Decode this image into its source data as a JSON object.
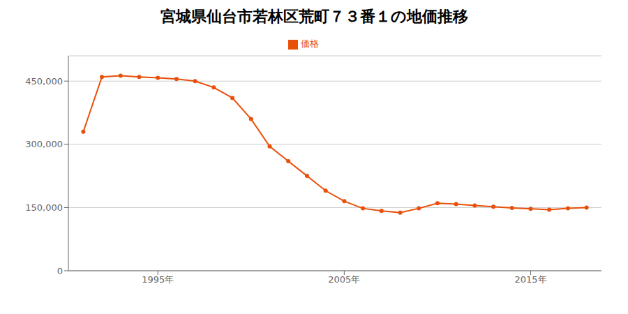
{
  "chart_data": {
    "type": "line",
    "title": "宮城県仙台市若林区荒町７３番１の地価推移",
    "x": [
      1991,
      1992,
      1993,
      1994,
      1995,
      1996,
      1997,
      1998,
      1999,
      2000,
      2001,
      2002,
      2003,
      2004,
      2005,
      2006,
      2007,
      2008,
      2009,
      2010,
      2011,
      2012,
      2013,
      2014,
      2015,
      2016,
      2017,
      2018
    ],
    "series": [
      {
        "name": "価格",
        "color": "#e8500a",
        "marker": "circle",
        "values": [
          330000,
          460000,
          463000,
          460000,
          458000,
          455000,
          450000,
          435000,
          410000,
          360000,
          295000,
          260000,
          225000,
          190000,
          165000,
          148000,
          142000,
          138000,
          148000,
          160000,
          158000,
          155000,
          152000,
          149000,
          147000,
          145000,
          148000,
          150000
        ]
      }
    ],
    "xlim": [
      1990.2,
      2018.8
    ],
    "xticks": [
      {
        "value": 1995,
        "label": "1995年"
      },
      {
        "value": 2005,
        "label": "2005年"
      },
      {
        "value": 2015,
        "label": "2015年"
      }
    ],
    "ylim": [
      0,
      510000
    ],
    "yticks": [
      0,
      {
        "value": 150000,
        "label": "150,000"
      },
      {
        "value": 300000,
        "label": "300,000"
      },
      {
        "value": 450000,
        "label": "450,000"
      }
    ],
    "grid": true,
    "legend": "top"
  }
}
